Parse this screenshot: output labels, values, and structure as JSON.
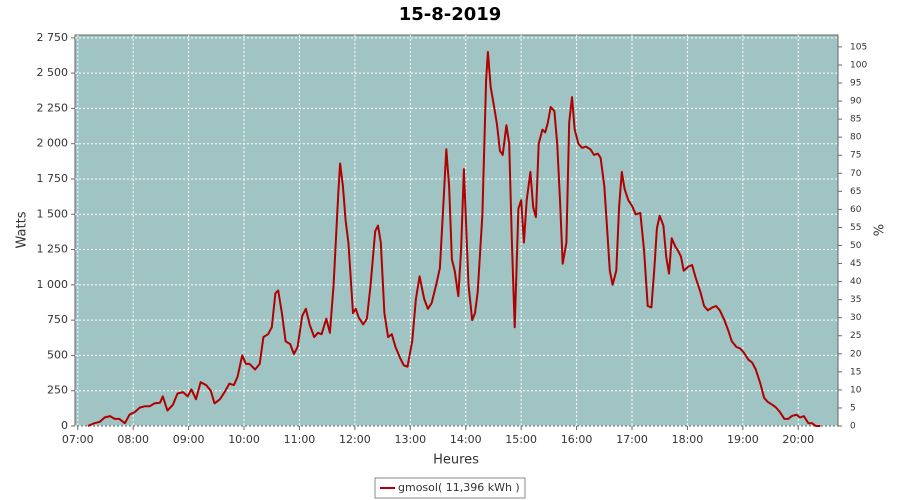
{
  "chart_data": {
    "type": "line",
    "title": "15-8-2019",
    "ylabel": "Watts",
    "xlabel": "Heures",
    "y2label": "%",
    "grid": true,
    "background": "#a0c4c4",
    "xlim": [
      417,
      1243
    ],
    "xticks": [
      {
        "value": 420,
        "label": "07:00"
      },
      {
        "value": 480,
        "label": "08:00"
      },
      {
        "value": 540,
        "label": "09:00"
      },
      {
        "value": 600,
        "label": "10:00"
      },
      {
        "value": 660,
        "label": "11:00"
      },
      {
        "value": 720,
        "label": "12:00"
      },
      {
        "value": 780,
        "label": "13:00"
      },
      {
        "value": 840,
        "label": "14:00"
      },
      {
        "value": 900,
        "label": "15:00"
      },
      {
        "value": 960,
        "label": "16:00"
      },
      {
        "value": 1020,
        "label": "17:00"
      },
      {
        "value": 1080,
        "label": "18:00"
      },
      {
        "value": 1140,
        "label": "19:00"
      },
      {
        "value": 1200,
        "label": "20:00"
      }
    ],
    "ylim": [
      0,
      2770
    ],
    "yticks": [
      0,
      250,
      500,
      750,
      {
        "value": 1000,
        "label": "1 000"
      },
      {
        "value": 1250,
        "label": "1 250"
      },
      {
        "value": 1500,
        "label": "1 500"
      },
      {
        "value": 1750,
        "label": "1 750"
      },
      {
        "value": 2000,
        "label": "2 000"
      },
      {
        "value": 2250,
        "label": "2 250"
      },
      {
        "value": 2500,
        "label": "2 500"
      },
      {
        "value": 2750,
        "label": "2 750"
      }
    ],
    "y2lim": [
      0,
      108.3
    ],
    "y2ticks": [
      0,
      5,
      10,
      15,
      20,
      25,
      30,
      35,
      40,
      45,
      50,
      55,
      60,
      65,
      70,
      75,
      80,
      85,
      90,
      95,
      100,
      105
    ],
    "x": [
      431,
      438,
      444,
      449,
      455,
      460,
      465,
      471,
      476,
      482,
      487,
      493,
      498,
      503,
      509,
      512,
      517,
      523,
      528,
      534,
      539,
      543,
      548,
      553,
      559,
      564,
      568,
      574,
      579,
      584,
      589,
      593,
      598,
      602,
      606,
      612,
      617,
      621,
      626,
      630,
      634,
      637,
      641,
      645,
      650,
      654,
      658,
      663,
      667,
      671,
      676,
      680,
      684,
      689,
      693,
      697,
      702,
      704,
      707,
      710,
      713,
      718,
      721,
      724,
      729,
      733,
      737,
      742,
      745,
      748,
      752,
      756,
      760,
      764,
      769,
      773,
      777,
      782,
      786,
      790,
      795,
      799,
      803,
      808,
      812,
      816,
      819,
      822,
      825,
      828,
      832,
      835,
      838,
      840,
      843,
      847,
      850,
      853,
      858,
      862,
      864,
      867,
      871,
      874,
      877,
      880,
      884,
      887,
      890,
      893,
      897,
      900,
      903,
      906,
      910,
      913,
      916,
      919,
      923,
      926,
      929,
      932,
      936,
      939,
      942,
      945,
      949,
      952,
      955,
      958,
      962,
      966,
      970,
      975,
      979,
      983,
      986,
      990,
      993,
      996,
      999,
      1003,
      1006,
      1009,
      1012,
      1016,
      1020,
      1024,
      1029,
      1033,
      1037,
      1041,
      1044,
      1047,
      1050,
      1054,
      1057,
      1060,
      1063,
      1067,
      1070,
      1073,
      1076,
      1081,
      1085,
      1089,
      1094,
      1098,
      1102,
      1107,
      1111,
      1115,
      1120,
      1124,
      1128,
      1133,
      1137,
      1141,
      1146,
      1150,
      1154,
      1159,
      1163,
      1167,
      1172,
      1176,
      1180,
      1185,
      1189,
      1193,
      1198,
      1202,
      1206,
      1211,
      1215,
      1219,
      1224
    ],
    "series": [
      {
        "name": "gmosol( 11,396 kWh )",
        "color": "#b00000",
        "values": [
          0,
          20,
          30,
          60,
          70,
          50,
          50,
          20,
          80,
          100,
          130,
          140,
          140,
          160,
          165,
          210,
          110,
          150,
          230,
          240,
          210,
          260,
          190,
          310,
          290,
          250,
          160,
          190,
          240,
          300,
          290,
          350,
          500,
          440,
          440,
          400,
          440,
          630,
          650,
          700,
          940,
          960,
          800,
          600,
          580,
          510,
          560,
          780,
          830,
          720,
          630,
          660,
          650,
          760,
          660,
          1000,
          1650,
          1860,
          1700,
          1450,
          1300,
          800,
          830,
          770,
          720,
          760,
          1000,
          1380,
          1420,
          1300,
          800,
          630,
          650,
          560,
          480,
          430,
          420,
          600,
          900,
          1060,
          900,
          830,
          870,
          1000,
          1120,
          1600,
          1960,
          1700,
          1180,
          1100,
          920,
          1250,
          1820,
          1500,
          1000,
          750,
          800,
          950,
          1500,
          2450,
          2650,
          2400,
          2250,
          2130,
          1950,
          1920,
          2130,
          2000,
          1300,
          700,
          1540,
          1600,
          1300,
          1600,
          1800,
          1550,
          1480,
          2000,
          2100,
          2080,
          2150,
          2260,
          2230,
          2000,
          1600,
          1150,
          1300,
          2150,
          2330,
          2100,
          2000,
          1970,
          1980,
          1960,
          1920,
          1930,
          1900,
          1700,
          1400,
          1100,
          1000,
          1100,
          1550,
          1800,
          1680,
          1600,
          1560,
          1500,
          1510,
          1250,
          850,
          840,
          1100,
          1400,
          1490,
          1420,
          1200,
          1080,
          1330,
          1270,
          1240,
          1200,
          1100,
          1130,
          1140,
          1050,
          950,
          850,
          820,
          840,
          850,
          820,
          750,
          680,
          600,
          560,
          550,
          520,
          470,
          450,
          400,
          300,
          200,
          170,
          150,
          130,
          100,
          50,
          50,
          70,
          80,
          60,
          70,
          20,
          20,
          0,
          0
        ]
      }
    ]
  }
}
